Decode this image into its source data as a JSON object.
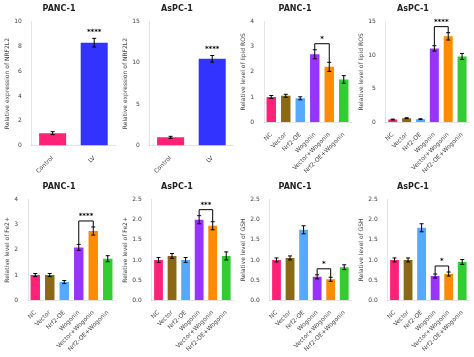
{
  "chart_data": [
    {
      "type": "bar",
      "title": "PANC-1",
      "ylabel": "Relative expression of NRF2L2",
      "categories": [
        "Control",
        "LV"
      ],
      "values": [
        1.0,
        8.3
      ],
      "errors": [
        0.12,
        0.35
      ],
      "colors": [
        "#FF2277",
        "#3333FF"
      ],
      "ylim": [
        0,
        10
      ],
      "yticks": [
        0,
        2,
        4,
        6,
        8,
        10
      ],
      "grid": false,
      "annotations": [
        {
          "text": "****",
          "categories": [
            "LV"
          ]
        }
      ]
    },
    {
      "type": "bar",
      "title": "AsPC-1",
      "ylabel": "Relative expression of NRF2L2",
      "categories": [
        "Control",
        "LV"
      ],
      "values": [
        1.0,
        10.5
      ],
      "errors": [
        0.12,
        0.4
      ],
      "colors": [
        "#FF2277",
        "#3333FF"
      ],
      "ylim": [
        0,
        15
      ],
      "yticks": [
        0,
        5,
        10,
        15
      ],
      "grid": false,
      "annotations": [
        {
          "text": "****",
          "categories": [
            "LV"
          ]
        }
      ]
    },
    {
      "type": "bar",
      "title": "PANC-1",
      "ylabel": "Relative level of lipid ROS",
      "categories": [
        "NC",
        "Vector",
        "Nrf2-OE",
        "Wogonin",
        "Vector+Wogonin",
        "Nrf2-OE+Wogonin"
      ],
      "values": [
        1.0,
        1.05,
        0.95,
        2.7,
        2.2,
        1.7
      ],
      "errors": [
        0.06,
        0.06,
        0.06,
        0.18,
        0.18,
        0.15
      ],
      "colors": [
        "#FF2277",
        "#8B6914",
        "#55AAFF",
        "#9933FF",
        "#FF8C00",
        "#33CC33"
      ],
      "ylim": [
        0,
        4
      ],
      "yticks": [
        0,
        1,
        2,
        3,
        4
      ],
      "grid": false,
      "annotations": [
        {
          "text": "*",
          "categories": [
            "Wogonin",
            "Vector+Wogonin"
          ]
        }
      ]
    },
    {
      "type": "bar",
      "title": "AsPC-1",
      "ylabel": "Relative level of lipid ROS",
      "categories": [
        "NC",
        "Vector",
        "Nrf2-OE",
        "Wogonin",
        "Vector+Wogonin",
        "Nrf2-OE+Wogonin"
      ],
      "values": [
        0.4,
        0.6,
        0.45,
        11.0,
        12.8,
        9.8
      ],
      "errors": [
        0.06,
        0.06,
        0.06,
        0.4,
        0.55,
        0.45
      ],
      "colors": [
        "#FF2277",
        "#8B6914",
        "#55AAFF",
        "#9933FF",
        "#FF8C00",
        "#33CC33"
      ],
      "ylim": [
        0,
        15
      ],
      "yticks": [
        0,
        5,
        10,
        15
      ],
      "grid": false,
      "annotations": [
        {
          "text": "****",
          "categories": [
            "Wogonin",
            "Vector+Wogonin"
          ]
        }
      ]
    },
    {
      "type": "bar",
      "title": "PANC-1",
      "ylabel": "Relative level of Fe2+",
      "categories": [
        "NC",
        "Vector",
        "Nrf2-OE",
        "Wogonin",
        "Vector+Wogonin",
        "Nrf2-OE+Wogonin"
      ],
      "values": [
        1.0,
        1.0,
        0.72,
        2.1,
        2.75,
        1.65
      ],
      "errors": [
        0.06,
        0.06,
        0.06,
        0.12,
        0.16,
        0.12
      ],
      "colors": [
        "#FF2277",
        "#8B6914",
        "#55AAFF",
        "#9933FF",
        "#FF8C00",
        "#33CC33"
      ],
      "ylim": [
        0,
        4
      ],
      "yticks": [
        0,
        1,
        2,
        3,
        4
      ],
      "grid": false,
      "annotations": [
        {
          "text": "****",
          "categories": [
            "Wogonin",
            "Vector+Wogonin"
          ]
        }
      ]
    },
    {
      "type": "bar",
      "title": "AsPC-1",
      "ylabel": "Relative level of Fe2+",
      "categories": [
        "NC",
        "Vector",
        "Nrf2-OE",
        "Wogonin",
        "Vector+Wogonin",
        "Nrf2-OE+Wogonin"
      ],
      "values": [
        1.0,
        1.1,
        1.0,
        2.0,
        1.85,
        1.1
      ],
      "errors": [
        0.06,
        0.06,
        0.06,
        0.1,
        0.1,
        0.1
      ],
      "colors": [
        "#FF2277",
        "#8B6914",
        "#55AAFF",
        "#9933FF",
        "#FF8C00",
        "#33CC33"
      ],
      "ylim": [
        0,
        2.5
      ],
      "yticks": [
        {
          "value": 0,
          "label": "0.0"
        },
        0.5,
        {
          "value": 1.0,
          "label": "1.0"
        },
        1.5,
        {
          "value": 2.0,
          "label": "2.0"
        },
        2.5
      ],
      "grid": false,
      "annotations": [
        {
          "text": "***",
          "categories": [
            "Wogonin",
            "Vector+Wogonin"
          ]
        }
      ]
    },
    {
      "type": "bar",
      "title": "PANC-1",
      "ylabel": "Relative level of GSH",
      "categories": [
        "NC",
        "Vector",
        "Nrf2-OE",
        "Wogonin",
        "Vector+Wogonin",
        "Nrf2-OE+Wogonin"
      ],
      "values": [
        1.0,
        1.05,
        1.75,
        0.58,
        0.52,
        0.82
      ],
      "errors": [
        0.05,
        0.05,
        0.1,
        0.05,
        0.05,
        0.06
      ],
      "colors": [
        "#FF2277",
        "#8B6914",
        "#55AAFF",
        "#9933FF",
        "#FF8C00",
        "#33CC33"
      ],
      "ylim": [
        0,
        2.5
      ],
      "yticks": [
        {
          "value": 0,
          "label": "0.0"
        },
        0.5,
        {
          "value": 1.0,
          "label": "1.0"
        },
        1.5,
        {
          "value": 2.0,
          "label": "2.0"
        },
        2.5
      ],
      "grid": false,
      "annotations": [
        {
          "text": "*",
          "categories": [
            "Wogonin",
            "Vector+Wogonin"
          ]
        }
      ]
    },
    {
      "type": "bar",
      "title": "AsPC-1",
      "ylabel": "Relative level of GSH",
      "categories": [
        "NC",
        "Vector",
        "Nrf2-OE",
        "Wogonin",
        "Vector+Wogonin",
        "Nrf2-OE+Wogonin"
      ],
      "values": [
        1.0,
        1.0,
        1.8,
        0.6,
        0.65,
        0.95
      ],
      "errors": [
        0.05,
        0.05,
        0.1,
        0.05,
        0.05,
        0.06
      ],
      "colors": [
        "#FF2277",
        "#8B6914",
        "#55AAFF",
        "#9933FF",
        "#FF8C00",
        "#33CC33"
      ],
      "ylim": [
        0,
        2.5
      ],
      "yticks": [
        {
          "value": 0,
          "label": "0.0"
        },
        0.5,
        {
          "value": 1.0,
          "label": "1.0"
        },
        1.5,
        {
          "value": 2.0,
          "label": "2.0"
        },
        2.5
      ],
      "grid": false,
      "annotations": [
        {
          "text": "*",
          "categories": [
            "Wogonin",
            "Vector+Wogonin"
          ]
        }
      ]
    }
  ]
}
